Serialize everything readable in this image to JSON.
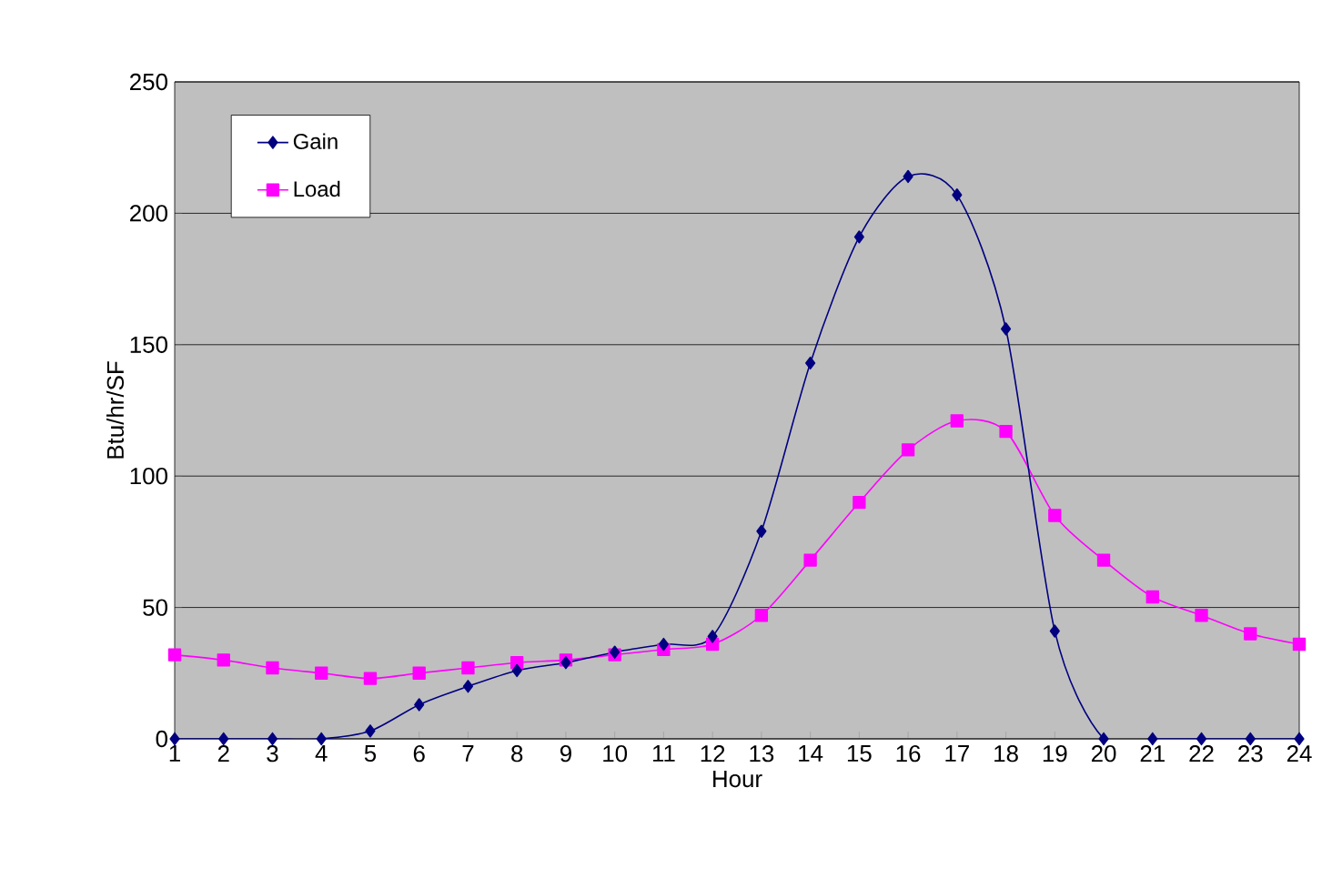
{
  "chart_data": {
    "type": "line",
    "xlabel": "Hour",
    "ylabel": "Btu/hr/SF",
    "categories": [
      "1",
      "2",
      "3",
      "4",
      "5",
      "6",
      "7",
      "8",
      "9",
      "10",
      "11",
      "12",
      "13",
      "14",
      "15",
      "16",
      "17",
      "18",
      "19",
      "20",
      "21",
      "22",
      "23",
      "24"
    ],
    "series": [
      {
        "name": "Gain",
        "color": "#000080",
        "marker": "diamond",
        "values": [
          0,
          0,
          0,
          0,
          3,
          13,
          20,
          26,
          29,
          33,
          36,
          39,
          79,
          143,
          191,
          214,
          207,
          156,
          41,
          0,
          0,
          0,
          0,
          0
        ]
      },
      {
        "name": "Load",
        "color": "#ff00ff",
        "marker": "square",
        "values": [
          32,
          30,
          27,
          25,
          23,
          25,
          27,
          29,
          30,
          32,
          34,
          36,
          47,
          68,
          90,
          110,
          121,
          117,
          85,
          68,
          54,
          47,
          40,
          36
        ]
      }
    ],
    "ylim": [
      0,
      250
    ],
    "yticks": [
      0,
      50,
      100,
      150,
      200,
      250
    ],
    "grid": "y",
    "legend": "top left",
    "line_style": "solid"
  }
}
